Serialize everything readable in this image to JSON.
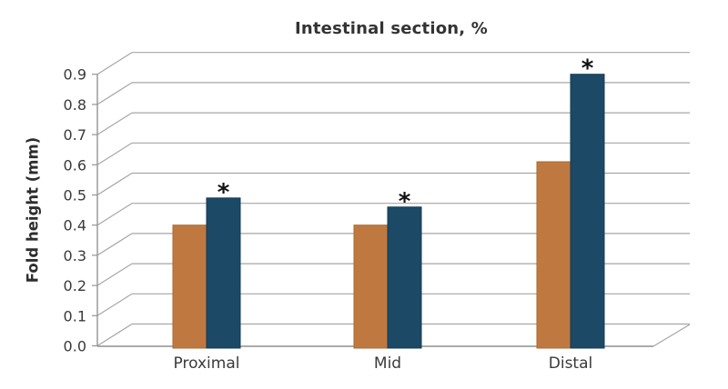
{
  "title": "Intestinal section, %",
  "chart_data": {
    "type": "bar",
    "title": "Intestinal section, %",
    "ylabel": "Fold height (mm)",
    "xlabel": "",
    "categories": [
      "Proximal",
      "Mid",
      "Distal"
    ],
    "series": [
      {
        "name": "orange",
        "color": "#bf7940",
        "edge_color": "#a8692f",
        "values": [
          0.4,
          0.4,
          0.61
        ]
      },
      {
        "name": "blue",
        "color": "#1c4965",
        "edge_color": "#153a52",
        "values": [
          0.49,
          0.46,
          0.9
        ],
        "significance": [
          "*",
          "*",
          "*"
        ]
      }
    ],
    "ylim": [
      0.0,
      0.9
    ],
    "ytick_step": 0.1,
    "yticks": [
      "0.0",
      "0.1",
      "0.2",
      "0.3",
      "0.4",
      "0.5",
      "0.6",
      "0.7",
      "0.8",
      "0.9"
    ],
    "grid": "horizontal gridlines on pseudo-3D back plane with oblique connectors",
    "legend": "none",
    "significance_marker": "*"
  },
  "colors": {
    "background": "#ffffff",
    "gridline": "#a6a6a6",
    "axis": "#949494",
    "text": "#3a3a3a",
    "title_text": "#333333"
  }
}
